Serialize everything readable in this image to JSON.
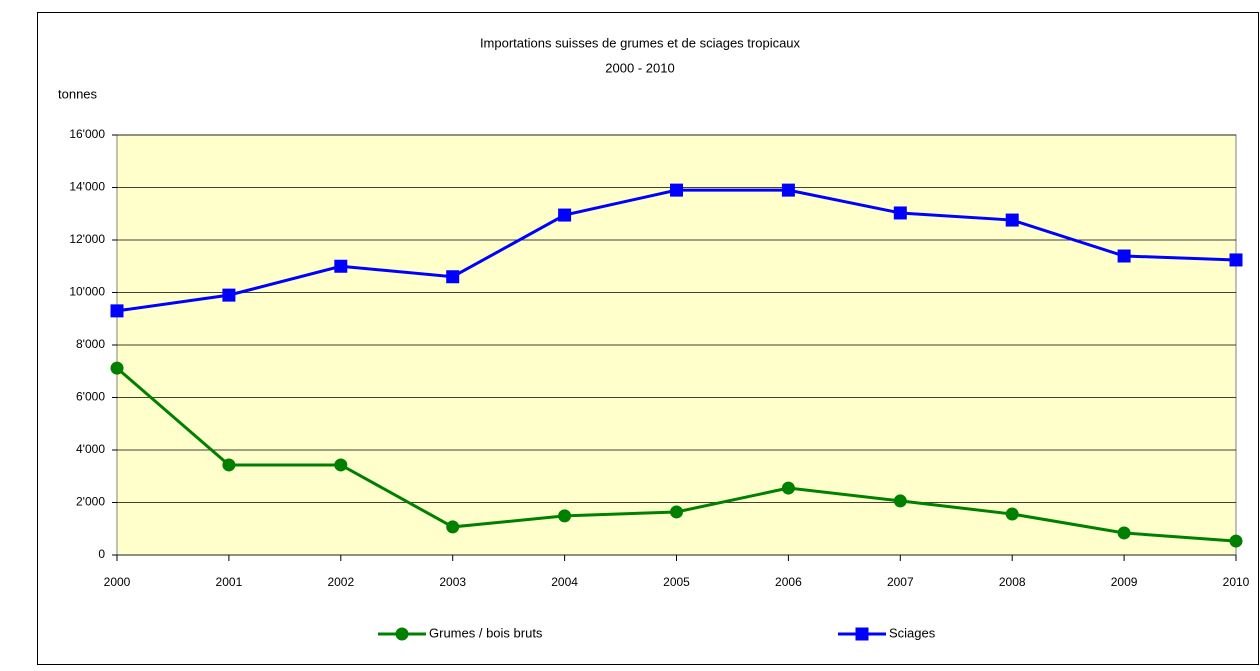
{
  "chart_data": {
    "type": "line",
    "title": "Importations suisses de grumes et de sciages tropicaux",
    "subtitle": "2000 - 2010",
    "y_label": "tonnes",
    "categories": [
      "2000",
      "2001",
      "2002",
      "2003",
      "2004",
      "2005",
      "2006",
      "2007",
      "2008",
      "2009",
      "2010"
    ],
    "series": [
      {
        "name": "Grumes / bois bruts",
        "color": "#008000",
        "marker": "circle",
        "values": [
          7120,
          3430,
          3430,
          1070,
          1490,
          1640,
          2550,
          2060,
          1560,
          840,
          530
        ]
      },
      {
        "name": "Sciages",
        "color": "#0000ff",
        "marker": "square",
        "values": [
          9300,
          9900,
          11000,
          10600,
          12950,
          13900,
          13900,
          13030,
          12760,
          11390,
          11240
        ]
      }
    ],
    "ylim": [
      0,
      16000
    ],
    "yticks": [
      0,
      {
        "value": 2000,
        "label": "2'000"
      },
      {
        "value": 4000,
        "label": "4'000"
      },
      {
        "value": 6000,
        "label": "6'000"
      },
      {
        "value": 8000,
        "label": "8'000"
      },
      {
        "value": 10000,
        "label": "10'000"
      },
      {
        "value": 12000,
        "label": "12'000"
      },
      {
        "value": 14000,
        "label": "14'000"
      },
      {
        "value": 16000,
        "label": "16'000"
      }
    ],
    "grid": true,
    "plot_background": "#ffffcc",
    "legend": "bottom"
  }
}
